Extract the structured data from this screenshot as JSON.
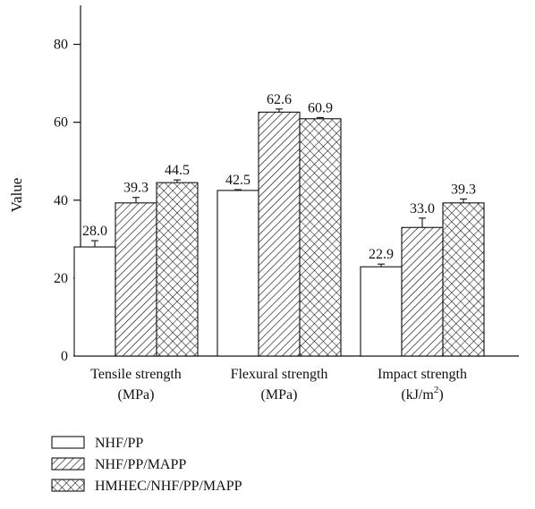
{
  "chart_data": {
    "type": "bar",
    "ylabel": "Value",
    "ylim": [
      0,
      90
    ],
    "yticks": [
      0,
      20,
      40,
      60,
      80
    ],
    "categories": [
      {
        "line1": "Tensile strength",
        "line2": "(MPa)",
        "sup": ""
      },
      {
        "line1": "Flexural strength",
        "line2": "(MPa)",
        "sup": ""
      },
      {
        "line1": "Impact strength",
        "line2": "(kJ/m",
        "sup": "2",
        "tail": ")"
      }
    ],
    "series": [
      {
        "name": "NHF/PP",
        "pattern": "none",
        "values": [
          28.0,
          42.5,
          22.9
        ],
        "errors": [
          1.6,
          0.2,
          0.7
        ],
        "labels": [
          "28.0",
          "42.5",
          "22.9"
        ]
      },
      {
        "name": "NHF/PP/MAPP",
        "pattern": "diagonal",
        "values": [
          39.3,
          62.6,
          33.0
        ],
        "errors": [
          1.4,
          0.8,
          2.4
        ],
        "labels": [
          "39.3",
          "62.6",
          "33.0"
        ]
      },
      {
        "name": "HMHEC/NHF/PP/MAPP",
        "pattern": "crosshatch",
        "values": [
          44.5,
          60.9,
          39.3
        ],
        "errors": [
          0.7,
          0.3,
          1.0
        ],
        "labels": [
          "44.5",
          "60.9",
          "39.3"
        ]
      }
    ],
    "legend_position": "bottom-left",
    "grid": false,
    "colors": {
      "stroke": "#111111",
      "fill": "#ffffff"
    }
  }
}
